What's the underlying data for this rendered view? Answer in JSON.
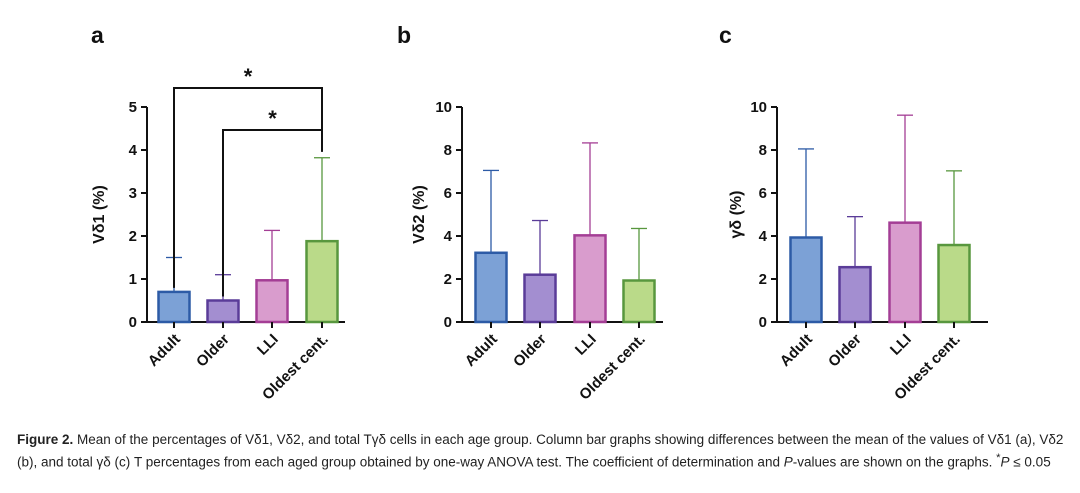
{
  "chart_data": [
    {
      "type": "bar",
      "panel": "a",
      "ylabel": "Vδ1 (%)",
      "categories": [
        "Adult",
        "Older",
        "LLI",
        "Oldest cent."
      ],
      "values": [
        0.7,
        0.5,
        0.97,
        1.88
      ],
      "error_upper": [
        1.5,
        1.1,
        2.13,
        3.82
      ],
      "ylim": [
        0,
        5
      ],
      "yticks": [
        "0",
        "1",
        "2",
        "3",
        "4",
        "5"
      ],
      "significance": [
        {
          "from": "Adult",
          "to": "Oldest cent.",
          "label": "*"
        },
        {
          "from": "Older",
          "to": "Oldest cent.",
          "label": "*"
        }
      ]
    },
    {
      "type": "bar",
      "panel": "b",
      "ylabel": "Vδ2 (%)",
      "categories": [
        "Adult",
        "Older",
        "LLI",
        "Oldest cent."
      ],
      "values": [
        3.22,
        2.2,
        4.03,
        1.93
      ],
      "error_upper": [
        7.05,
        4.72,
        8.33,
        4.35
      ],
      "ylim": [
        0,
        10
      ],
      "yticks": [
        "0",
        "2",
        "4",
        "6",
        "8",
        "10"
      ],
      "significance": []
    },
    {
      "type": "bar",
      "panel": "c",
      "ylabel": "γδ  (%)",
      "categories": [
        "Adult",
        "Older",
        "LLI",
        "Oldest cent."
      ],
      "values": [
        3.93,
        2.55,
        4.62,
        3.58
      ],
      "error_upper": [
        8.05,
        4.9,
        9.62,
        7.03
      ],
      "ylim": [
        0,
        10
      ],
      "yticks": [
        "0",
        "2",
        "4",
        "6",
        "8",
        "10"
      ],
      "significance": []
    }
  ],
  "bar_colors": {
    "Adult": {
      "fill": "#7ca1d6",
      "stroke": "#2d5ba6"
    },
    "Older": {
      "fill": "#a38ed0",
      "stroke": "#5a3c98"
    },
    "LLI": {
      "fill": "#d99ccd",
      "stroke": "#a43e95"
    },
    "Oldest cent.": {
      "fill": "#bada89",
      "stroke": "#58973e"
    }
  },
  "caption": {
    "label": "Figure 2.",
    "text1": " Mean of the percentages of Vδ1, Vδ2, and total Tγδ cells in each age group. Column bar graphs showing differences between the mean of the values of Vδ1 (a), Vδ2 (b), and total γδ (c) T percentages from each aged group obtained by one-way ANOVA test. The coefficient of determination and ",
    "italic_p": "P",
    "text2": "-values are shown on the graphs. ",
    "sup": "*",
    "italic_p2": "P",
    "text3": " ≤ 0.05"
  }
}
